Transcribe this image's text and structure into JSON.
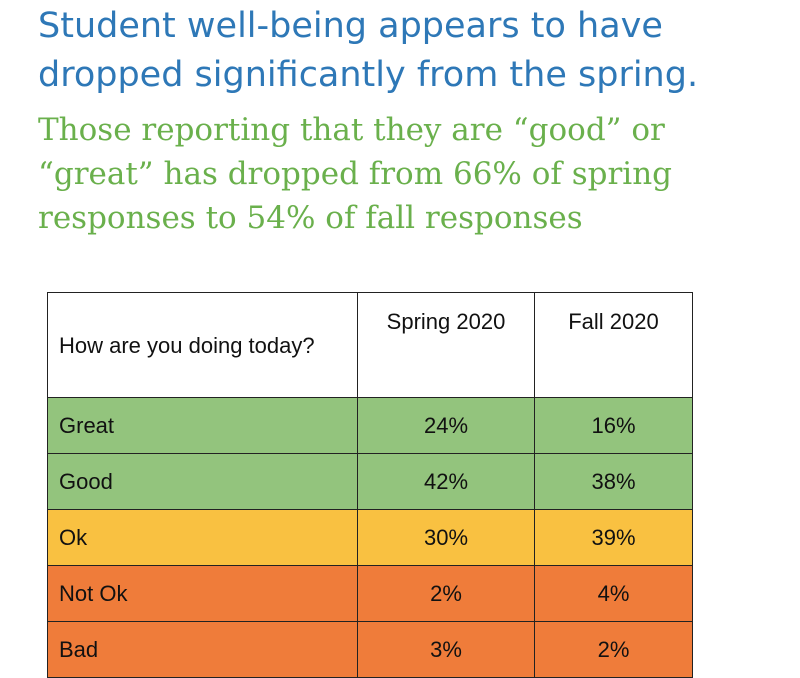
{
  "heading": {
    "title": "Student well-being appears to have dropped significantly from the spring.",
    "subtitle": "Those reporting that they are “good” or “great” has dropped from 66% of spring responses to 54% of fall responses"
  },
  "colors": {
    "title": "#2e78b7",
    "subtitle": "#6ab04c",
    "green": "#93c47d",
    "yellow": "#f9c141",
    "orange": "#ef7c3a"
  },
  "table": {
    "headers": {
      "question": "How are you doing today?",
      "spring": "Spring 2020",
      "fall": "Fall 2020"
    },
    "rows": [
      {
        "label": "Great",
        "spring": "24%",
        "fall": "16%"
      },
      {
        "label": "Good",
        "spring": "42%",
        "fall": "38%"
      },
      {
        "label": "Ok",
        "spring": "30%",
        "fall": "39%"
      },
      {
        "label": "Not Ok",
        "spring": "2%",
        "fall": "4%"
      },
      {
        "label": "Bad",
        "spring": "3%",
        "fall": "2%"
      }
    ]
  }
}
